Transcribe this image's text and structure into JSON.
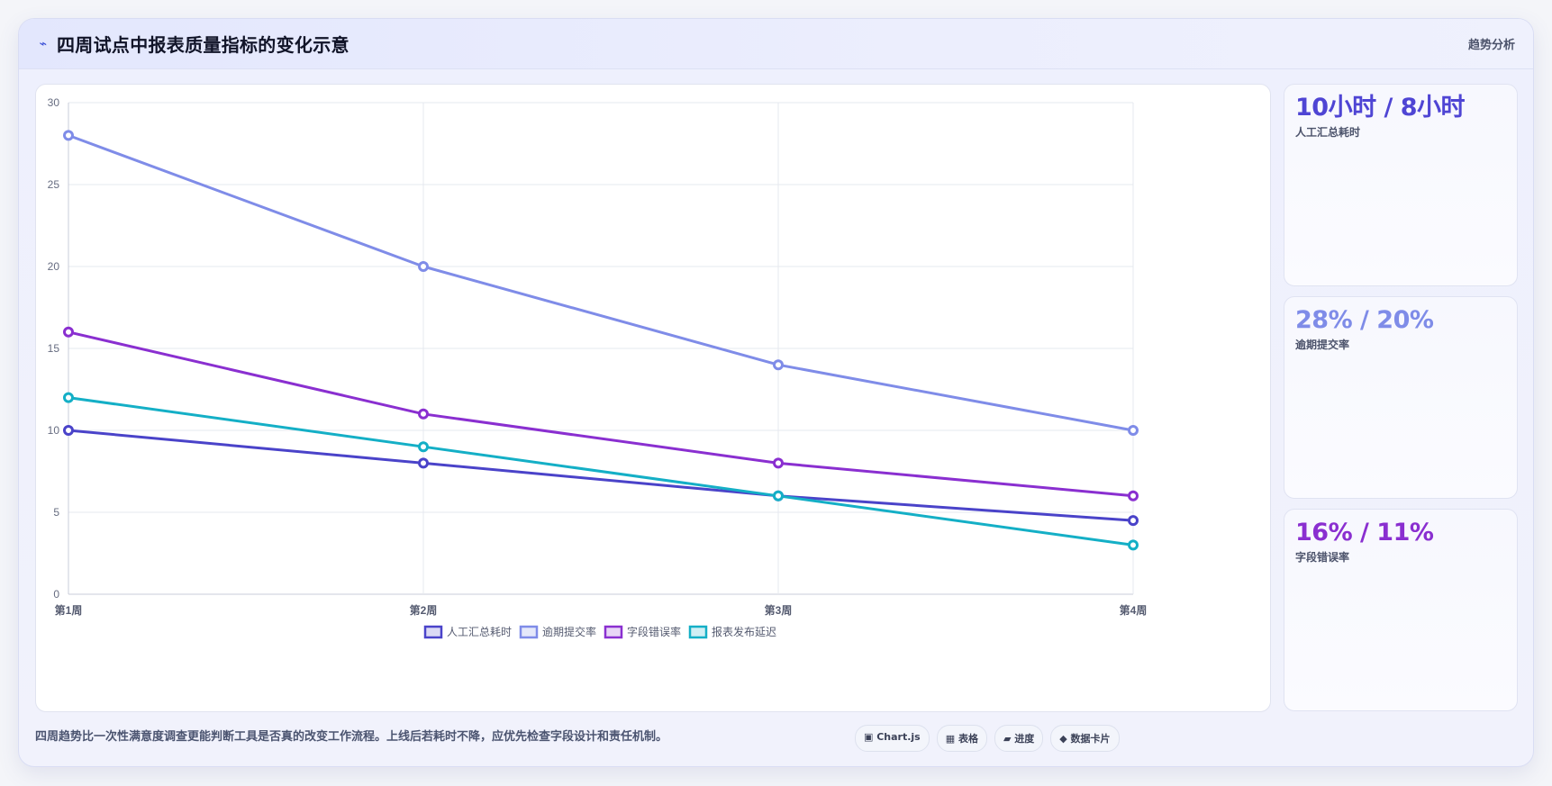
{
  "header": {
    "title_icon": "⌁",
    "title": "四周试点中报表质量指标的变化示意",
    "tag": "趋势分析"
  },
  "chart_data": {
    "type": "line",
    "categories": [
      "第1周",
      "第2周",
      "第3周",
      "第4周"
    ],
    "ylim": [
      0,
      30
    ],
    "yticks": [
      0,
      5,
      10,
      15,
      20,
      25,
      30
    ],
    "grid": true,
    "legend_position": "bottom",
    "series": [
      {
        "name": "人工汇总耗时",
        "color": "#4a43c9",
        "values": [
          10,
          8,
          6,
          4.5
        ]
      },
      {
        "name": "逾期提交率",
        "color": "#7f8ce8",
        "values": [
          28,
          20,
          14,
          10
        ]
      },
      {
        "name": "字段错误率",
        "color": "#8a2fd0",
        "values": [
          16,
          11,
          8,
          6
        ]
      },
      {
        "name": "报表发布延迟",
        "color": "#14afc6",
        "values": [
          12,
          9,
          6,
          3
        ]
      }
    ]
  },
  "stats": [
    {
      "value": "10小时 / 8小时",
      "label": "人工汇总耗时",
      "color": "#4f45d4"
    },
    {
      "value": "28% / 20%",
      "label": "逾期提交率",
      "color": "#7f8ce8"
    },
    {
      "value": "16% / 11%",
      "label": "字段错误率",
      "color": "#8a2fd0"
    }
  ],
  "footer": {
    "note": "四周趋势比一次性满意度调查更能判断工具是否真的改变工作流程。上线后若耗时不降，应优先检查字段设计和责任机制。",
    "chips": [
      "▣ Chart.js",
      "▦ 表格",
      "▰ 进度",
      "◆ 数据卡片"
    ]
  }
}
